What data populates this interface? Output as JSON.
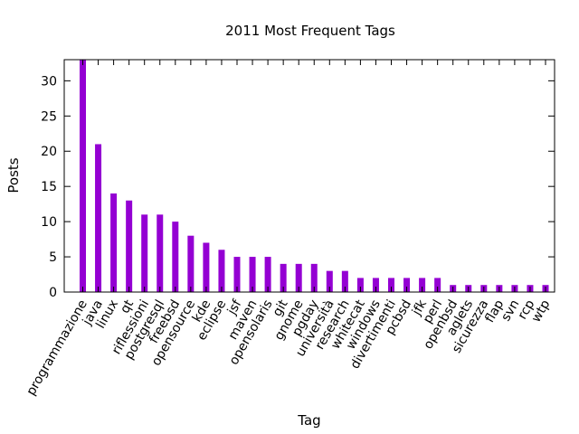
{
  "chart_data": {
    "type": "bar",
    "title": "2011 Most Frequent Tags",
    "xlabel": "Tag",
    "ylabel": "Posts",
    "ylim": [
      0,
      33
    ],
    "yticks": [
      0,
      5,
      10,
      15,
      20,
      25,
      30
    ],
    "grid": false,
    "bar_color": "#9400d3",
    "categories": [
      "programmazione",
      "java",
      "linux",
      "qt",
      "riflessioni",
      "postgresql",
      "freebsd",
      "opensource",
      "kde",
      "eclipse",
      "jsf",
      "maven",
      "opensolaris",
      "git",
      "gnome",
      "pgday",
      "università",
      "research",
      "whitecat",
      "windows",
      "divertimenti",
      "pcbsd",
      "jfk",
      "perl",
      "openbsd",
      "aglets",
      "sicurezza",
      "flap",
      "svn",
      "rcp",
      "wtp"
    ],
    "values": [
      33,
      21,
      14,
      13,
      11,
      11,
      10,
      8,
      7,
      6,
      5,
      5,
      5,
      4,
      4,
      4,
      3,
      3,
      2,
      2,
      2,
      2,
      2,
      2,
      1,
      1,
      1,
      1,
      1,
      1,
      1
    ]
  }
}
